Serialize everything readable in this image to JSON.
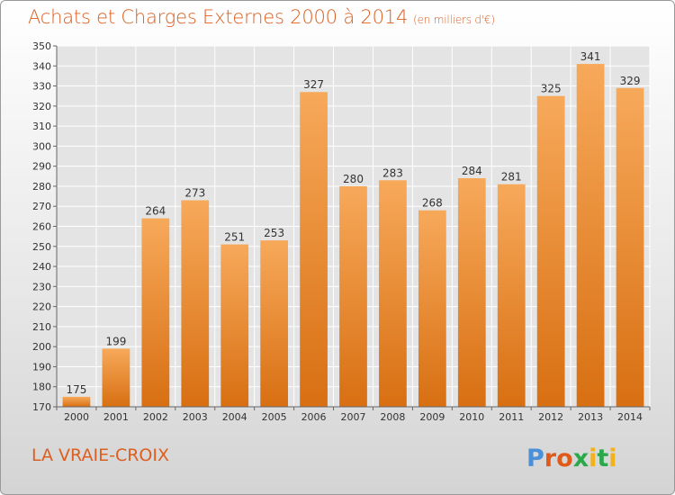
{
  "title": "Achats et Charges Externes 2000 à 2014",
  "subtitle": "(en milliers d'€)",
  "commune": "LA VRAIE-CROIX",
  "logo": {
    "text": "Proxiti",
    "colors": [
      "#4a90d9",
      "#e05a1a",
      "#2ba84a",
      "#f2b21c"
    ]
  },
  "colors": {
    "accent": "#dc5f20",
    "bar_top": "#f7a95a",
    "bar_bottom": "#d86f12"
  },
  "chart_data": {
    "type": "bar",
    "title": "Achats et Charges Externes 2000 à 2014",
    "xlabel": "",
    "ylabel": "",
    "categories": [
      "2000",
      "2001",
      "2002",
      "2003",
      "2004",
      "2005",
      "2006",
      "2007",
      "2008",
      "2009",
      "2010",
      "2011",
      "2012",
      "2013",
      "2014"
    ],
    "values": [
      175,
      199,
      264,
      273,
      251,
      253,
      327,
      280,
      283,
      268,
      284,
      281,
      325,
      341,
      329
    ],
    "ylim": [
      170,
      350
    ],
    "yticks": [
      170,
      180,
      190,
      200,
      210,
      220,
      230,
      240,
      250,
      260,
      270,
      280,
      290,
      300,
      310,
      320,
      330,
      340,
      350
    ],
    "grid": true,
    "legend": "none"
  }
}
